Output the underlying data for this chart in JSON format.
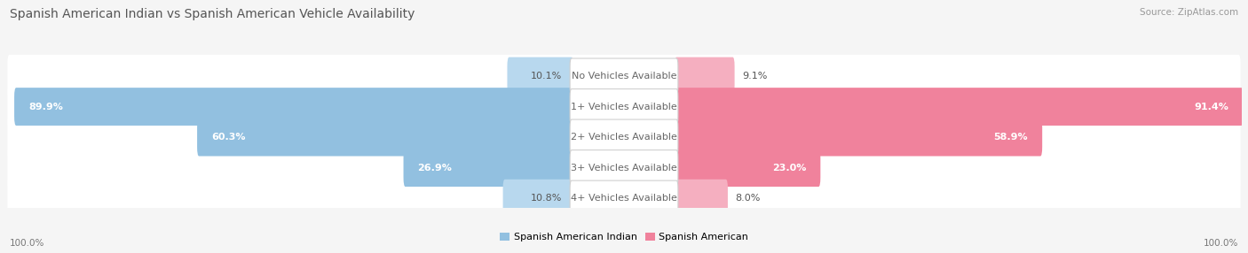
{
  "title": "Spanish American Indian vs Spanish American Vehicle Availability",
  "source": "Source: ZipAtlas.com",
  "categories": [
    "No Vehicles Available",
    "1+ Vehicles Available",
    "2+ Vehicles Available",
    "3+ Vehicles Available",
    "4+ Vehicles Available"
  ],
  "left_values": [
    10.1,
    89.9,
    60.3,
    26.9,
    10.8
  ],
  "right_values": [
    9.1,
    91.4,
    58.9,
    23.0,
    8.0
  ],
  "left_color": "#92c0e0",
  "right_color": "#f0829c",
  "left_color_light": "#b8d8ee",
  "right_color_light": "#f5afc0",
  "left_label": "Spanish American Indian",
  "right_label": "Spanish American",
  "max_val": 100.0,
  "bg_color": "#f5f5f5",
  "row_bg_color": "#ebebeb",
  "row_sep_color": "#d8d8d8",
  "title_fontsize": 10,
  "label_fontsize": 8,
  "value_fontsize": 8,
  "source_fontsize": 7.5,
  "bottom_label": "100.0%"
}
